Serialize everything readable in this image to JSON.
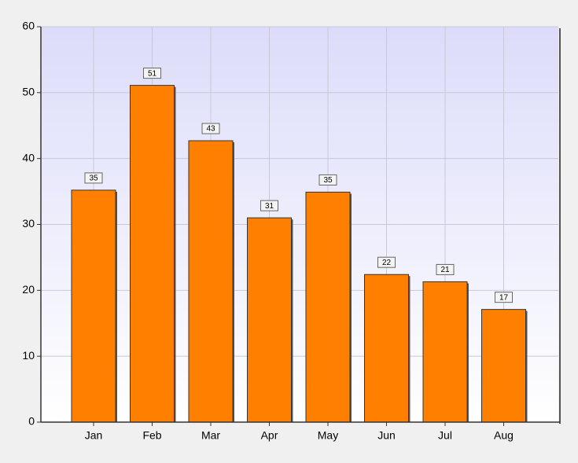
{
  "chart_data": {
    "type": "bar",
    "categories": [
      "Jan",
      "Feb",
      "Mar",
      "Apr",
      "May",
      "Jun",
      "Jul",
      "Aug"
    ],
    "values": [
      35.2,
      51.1,
      42.7,
      31,
      34.9,
      22.4,
      21.3,
      17.1
    ],
    "value_labels": [
      "35",
      "51",
      "43",
      "31",
      "35",
      "22",
      "21",
      "17"
    ],
    "color": "#ff8000",
    "ylim": [
      0,
      60
    ],
    "yticks": [
      0,
      10,
      20,
      30,
      40,
      50,
      60
    ],
    "grid": true
  }
}
